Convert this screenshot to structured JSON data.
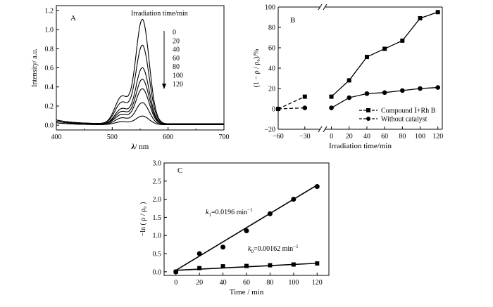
{
  "chart_data": [
    {
      "id": "A",
      "type": "line",
      "panel_label": "A",
      "title": "",
      "xlabel_symbol": "λ",
      "xlabel_unit": "/ nm",
      "ylabel": "Intensity/ a.u.",
      "xlim": [
        400,
        700
      ],
      "ylim": [
        -0.05,
        1.25
      ],
      "xticks": [
        400,
        500,
        600,
        700
      ],
      "yticks": [
        0.0,
        0.2,
        0.4,
        0.6,
        0.8,
        1.0,
        1.2
      ],
      "ytick_labels": [
        "0.0",
        "0.2",
        "0.4",
        "0.6",
        "0.8",
        "1.0",
        "1.2"
      ],
      "legend_title": "Irradiation time/min",
      "series": [
        {
          "name": "0",
          "peak": 1.09,
          "shoulder": 0.28,
          "baseline": 0.03
        },
        {
          "name": "20",
          "peak": 0.82,
          "shoulder": 0.22,
          "baseline": 0.03
        },
        {
          "name": "40",
          "peak": 0.59,
          "shoulder": 0.16,
          "baseline": 0.02
        },
        {
          "name": "60",
          "peak": 0.47,
          "shoulder": 0.13,
          "baseline": 0.02
        },
        {
          "name": "80",
          "peak": 0.37,
          "shoulder": 0.1,
          "baseline": 0.02
        },
        {
          "name": "100",
          "peak": 0.23,
          "shoulder": 0.07,
          "baseline": 0.01
        },
        {
          "name": "120",
          "peak": 0.09,
          "shoulder": 0.03,
          "baseline": 0.01
        }
      ],
      "peak_wavelength": 554,
      "shoulder_wavelength": 517
    },
    {
      "id": "B",
      "type": "line",
      "panel_label": "B",
      "title": "",
      "xlabel": "Irradiation time/min",
      "ylabel": "(1 − ρ / ρ₀)/%",
      "xlim": [
        -60,
        125
      ],
      "ylim": [
        -20,
        100
      ],
      "xticks": [
        -60,
        -30,
        0,
        20,
        40,
        60,
        80,
        100,
        120
      ],
      "xtick_labels": [
        "−60",
        "−30",
        "0",
        "20",
        "40",
        "60",
        "80",
        "100",
        "120"
      ],
      "yticks": [
        -20,
        0,
        20,
        40,
        60,
        80,
        100
      ],
      "ytick_labels": [
        "−20",
        "0",
        "20",
        "40",
        "60",
        "80",
        "100"
      ],
      "axis_break": true,
      "legend_position": "bottom-right",
      "series": [
        {
          "name": "Compound Ⅰ+Rh B",
          "marker": "square",
          "x": [
            -60,
            -30,
            0,
            20,
            40,
            60,
            80,
            100,
            120
          ],
          "y": [
            0,
            12,
            12,
            28,
            51,
            59,
            67,
            89,
            95
          ]
        },
        {
          "name": "Without catalyst",
          "marker": "circle",
          "x": [
            -60,
            -30,
            0,
            20,
            40,
            60,
            80,
            100,
            120
          ],
          "y": [
            0,
            1,
            1,
            11,
            15,
            16,
            18,
            20,
            21
          ]
        }
      ]
    },
    {
      "id": "C",
      "type": "scatter",
      "panel_label": "C",
      "title": "",
      "xlabel": "Time / min",
      "ylabel": "−ln ( ρ / ρ₀ )",
      "xlim": [
        -10,
        130
      ],
      "ylim": [
        -0.1,
        3.0
      ],
      "xticks": [
        0,
        20,
        40,
        60,
        80,
        100,
        120
      ],
      "yticks": [
        0.0,
        0.5,
        1.0,
        1.5,
        2.0,
        2.5,
        3.0
      ],
      "ytick_labels": [
        "0.0",
        "0.5",
        "1.0",
        "1.5",
        "2.0",
        "2.5",
        "3.0"
      ],
      "series": [
        {
          "name": "k1",
          "marker": "circle",
          "x": [
            0,
            20,
            40,
            60,
            80,
            100,
            120
          ],
          "y": [
            0.0,
            0.5,
            0.68,
            1.13,
            1.6,
            2.0,
            2.35
          ],
          "fit": {
            "intercept": 0.04,
            "slope": 0.0196
          }
        },
        {
          "name": "k0",
          "marker": "square",
          "x": [
            0,
            20,
            40,
            60,
            80,
            100,
            120
          ],
          "y": [
            0.0,
            0.1,
            0.15,
            0.16,
            0.18,
            0.2,
            0.23
          ],
          "fit": {
            "intercept": 0.04,
            "slope": 0.00162
          }
        }
      ],
      "annotations": [
        {
          "symbol": "k",
          "subscript": "1",
          "text": "=0.0196 min",
          "superscript": "−1"
        },
        {
          "symbol": "k",
          "subscript": "0",
          "text": "=0.00162 min",
          "superscript": "−1"
        }
      ]
    }
  ]
}
